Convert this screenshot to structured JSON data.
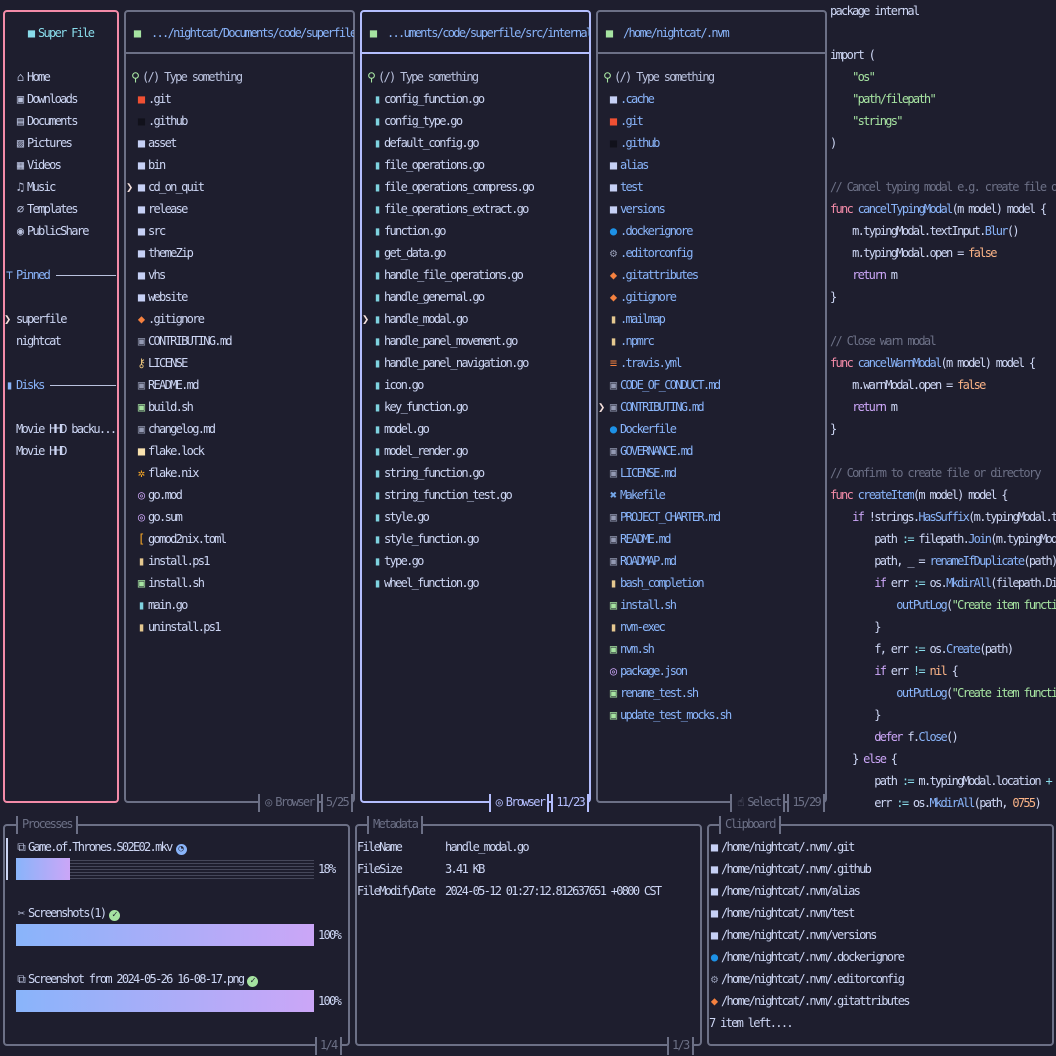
{
  "colors": {
    "background": "#1e1e2e",
    "sidebar_border": "#f38ba8",
    "active_border": "#b4befe",
    "border": "#6c7086",
    "accent": "#89b4fa"
  },
  "sidebar": {
    "title": "Super File",
    "title_icon": "folder-icon",
    "items": [
      {
        "label": "Home",
        "icon": "home"
      },
      {
        "label": "Downloads",
        "icon": "downloads"
      },
      {
        "label": "Documents",
        "icon": "documents"
      },
      {
        "label": "Pictures",
        "icon": "pictures"
      },
      {
        "label": "Videos",
        "icon": "videos"
      },
      {
        "label": "Music",
        "icon": "music"
      },
      {
        "label": "Templates",
        "icon": "templates"
      },
      {
        "label": "PublicShare",
        "icon": "publicshare"
      }
    ],
    "pinned_label": "Pinned",
    "pinned": [
      {
        "label": "superfile",
        "selected": true
      },
      {
        "label": "nightcat"
      }
    ],
    "disks_label": "Disks",
    "disks": [
      {
        "label": "Movie HHD backu..."
      },
      {
        "label": "Movie HHD"
      }
    ]
  },
  "search_placeholder": "(/) Type something",
  "panels": [
    {
      "path": ".../nightcat/Documents/code/superfile",
      "mode": "Browser",
      "count": "5/25",
      "active": false,
      "text_color": "#cdd6f4",
      "files": [
        [
          "git-folder",
          ".git"
        ],
        [
          "github-folder",
          ".github"
        ],
        [
          "folder",
          "asset"
        ],
        [
          "folder",
          "bin"
        ],
        [
          "folder",
          "cd_on_quit",
          1
        ],
        [
          "folder",
          "release"
        ],
        [
          "folder",
          "src"
        ],
        [
          "folder",
          "themeZip"
        ],
        [
          "folder",
          "vhs"
        ],
        [
          "folder",
          "website"
        ],
        [
          "gitignore",
          ".gitignore"
        ],
        [
          "markdown",
          "CONTRIBUTING.md"
        ],
        [
          "license",
          "LICENSE"
        ],
        [
          "markdown",
          "README.md"
        ],
        [
          "shell",
          "build.sh"
        ],
        [
          "markdown",
          "changelog.md"
        ],
        [
          "lock",
          "flake.lock"
        ],
        [
          "nix",
          "flake.nix"
        ],
        [
          "gomod",
          "go.mod"
        ],
        [
          "gomod",
          "go.sum"
        ],
        [
          "toml",
          "gomod2nix.toml"
        ],
        [
          "file",
          "install.ps1"
        ],
        [
          "shell",
          "install.sh"
        ],
        [
          "go",
          "main.go"
        ],
        [
          "file",
          "uninstall.ps1"
        ]
      ]
    },
    {
      "path": "...uments/code/superfile/src/internal",
      "mode": "Browser",
      "count": "11/23",
      "active": true,
      "text_color": "#cdd6f4",
      "files": [
        [
          "go",
          "config_function.go"
        ],
        [
          "go",
          "config_type.go"
        ],
        [
          "go",
          "default_config.go"
        ],
        [
          "go",
          "file_operations.go"
        ],
        [
          "go",
          "file_operations_compress.go"
        ],
        [
          "go",
          "file_operations_extract.go"
        ],
        [
          "go",
          "function.go"
        ],
        [
          "go",
          "get_data.go"
        ],
        [
          "go",
          "handle_file_operations.go"
        ],
        [
          "go",
          "handle_genernal.go"
        ],
        [
          "go",
          "handle_modal.go",
          1
        ],
        [
          "go",
          "handle_panel_movement.go"
        ],
        [
          "go",
          "handle_panel_navigation.go"
        ],
        [
          "go",
          "icon.go"
        ],
        [
          "go",
          "key_function.go"
        ],
        [
          "go",
          "model.go"
        ],
        [
          "go",
          "model_render.go"
        ],
        [
          "go",
          "string_function.go"
        ],
        [
          "go",
          "string_function_test.go"
        ],
        [
          "go",
          "style.go"
        ],
        [
          "go",
          "style_function.go"
        ],
        [
          "go",
          "type.go"
        ],
        [
          "go",
          "wheel_function.go"
        ]
      ]
    },
    {
      "path": "/home/nightcat/.nvm",
      "mode": "Select",
      "count": "15/29",
      "active": false,
      "text_color": "#89b4fa",
      "files": [
        [
          "folder",
          ".cache"
        ],
        [
          "git-folder",
          ".git"
        ],
        [
          "github-folder",
          ".github"
        ],
        [
          "folder",
          "alias"
        ],
        [
          "folder",
          "test"
        ],
        [
          "folder",
          "versions"
        ],
        [
          "docker",
          ".dockerignore"
        ],
        [
          "editorconfig",
          ".editorconfig"
        ],
        [
          "gitignore",
          ".gitattributes"
        ],
        [
          "gitignore",
          ".gitignore"
        ],
        [
          "file",
          ".mailmap"
        ],
        [
          "file",
          ".npmrc"
        ],
        [
          "travis",
          ".travis.yml"
        ],
        [
          "markdown",
          "CODE_OF_CONDUCT.md"
        ],
        [
          "markdown",
          "CONTRIBUTING.md",
          1
        ],
        [
          "docker",
          "Dockerfile"
        ],
        [
          "markdown",
          "GOVERNANCE.md"
        ],
        [
          "markdown",
          "LICENSE.md"
        ],
        [
          "makefile",
          "Makefile"
        ],
        [
          "markdown",
          "PROJECT_CHARTER.md"
        ],
        [
          "markdown",
          "README.md"
        ],
        [
          "markdown",
          "ROADMAP.md"
        ],
        [
          "file",
          "bash_completion"
        ],
        [
          "shell",
          "install.sh"
        ],
        [
          "file",
          "nvm-exec"
        ],
        [
          "shell",
          "nvm.sh"
        ],
        [
          "gomod",
          "package.json"
        ],
        [
          "shell",
          "rename_test.sh"
        ],
        [
          "shell",
          "update_test_mocks.sh"
        ]
      ]
    }
  ],
  "preview": [
    [
      [
        "package internal",
        "t"
      ]
    ],
    [],
    [
      [
        "import (",
        "t"
      ]
    ],
    [
      [
        "    ",
        "t"
      ],
      [
        "\"os\"",
        "s"
      ]
    ],
    [
      [
        "    ",
        "t"
      ],
      [
        "\"path/filepath\"",
        "s"
      ]
    ],
    [
      [
        "    ",
        "t"
      ],
      [
        "\"strings\"",
        "s"
      ]
    ],
    [
      [
        ")",
        "t"
      ]
    ],
    [],
    [
      [
        "// Cancel typing modal e.g. create file o",
        "c"
      ]
    ],
    [
      [
        "func",
        "k"
      ],
      [
        " ",
        "t"
      ],
      [
        "cancelTypingModal",
        "f"
      ],
      [
        "(m model) model {",
        "t"
      ]
    ],
    [
      [
        "    m.typingModal.textInput.",
        "t"
      ],
      [
        "Blur",
        "f"
      ],
      [
        "()",
        "t"
      ]
    ],
    [
      [
        "    m.typingModal.open = ",
        "t"
      ],
      [
        "false",
        "o"
      ]
    ],
    [
      [
        "    ",
        "t"
      ],
      [
        "return",
        "p"
      ],
      [
        " m",
        "t"
      ]
    ],
    [
      [
        "}",
        "t"
      ]
    ],
    [],
    [
      [
        "// Close warn modal",
        "c"
      ]
    ],
    [
      [
        "func",
        "k"
      ],
      [
        " ",
        "t"
      ],
      [
        "cancelWarnModal",
        "f"
      ],
      [
        "(m model) model {",
        "t"
      ]
    ],
    [
      [
        "    m.warnModal.open = ",
        "t"
      ],
      [
        "false",
        "o"
      ]
    ],
    [
      [
        "    ",
        "t"
      ],
      [
        "return",
        "p"
      ],
      [
        " m",
        "t"
      ]
    ],
    [
      [
        "}",
        "t"
      ]
    ],
    [],
    [
      [
        "// Confirm to create file or directory",
        "c"
      ]
    ],
    [
      [
        "func",
        "k"
      ],
      [
        " ",
        "t"
      ],
      [
        "createItem",
        "f"
      ],
      [
        "(m model) model {",
        "t"
      ]
    ],
    [
      [
        "    ",
        "t"
      ],
      [
        "if",
        "p"
      ],
      [
        " !strings.",
        "t"
      ],
      [
        "HasSuffix",
        "f"
      ],
      [
        "(m.typingModal.t",
        "t"
      ]
    ],
    [
      [
        "        path ",
        "t"
      ],
      [
        ":=",
        "x"
      ],
      [
        " filepath.",
        "t"
      ],
      [
        "Join",
        "f"
      ],
      [
        "(m.typingMod",
        "t"
      ]
    ],
    [
      [
        "        path, _ = ",
        "t"
      ],
      [
        "renameIfDuplicate",
        "f"
      ],
      [
        "(path)",
        "t"
      ]
    ],
    [
      [
        "        ",
        "t"
      ],
      [
        "if",
        "p"
      ],
      [
        " err ",
        "t"
      ],
      [
        ":=",
        "x"
      ],
      [
        " os.",
        "t"
      ],
      [
        "MkdirAll",
        "f"
      ],
      [
        "(filepath.Di",
        "t"
      ]
    ],
    [
      [
        "            ",
        "t"
      ],
      [
        "outPutLog",
        "f"
      ],
      [
        "(",
        "t"
      ],
      [
        "\"Create item functi",
        "s"
      ]
    ],
    [
      [
        "        }",
        "t"
      ]
    ],
    [
      [
        "        f, err ",
        "t"
      ],
      [
        ":=",
        "x"
      ],
      [
        " os.",
        "t"
      ],
      [
        "Create",
        "f"
      ],
      [
        "(path)",
        "t"
      ]
    ],
    [
      [
        "        ",
        "t"
      ],
      [
        "if",
        "p"
      ],
      [
        " err ",
        "t"
      ],
      [
        "!=",
        "x"
      ],
      [
        " ",
        "t"
      ],
      [
        "nil",
        "o"
      ],
      [
        " {",
        "t"
      ]
    ],
    [
      [
        "            ",
        "t"
      ],
      [
        "outPutLog",
        "f"
      ],
      [
        "(",
        "t"
      ],
      [
        "\"Create item functi",
        "s"
      ]
    ],
    [
      [
        "        }",
        "t"
      ]
    ],
    [
      [
        "        ",
        "t"
      ],
      [
        "defer",
        "p"
      ],
      [
        " f.",
        "t"
      ],
      [
        "Close",
        "f"
      ],
      [
        "()",
        "t"
      ]
    ],
    [
      [
        "    } ",
        "t"
      ],
      [
        "else",
        "p"
      ],
      [
        " {",
        "t"
      ]
    ],
    [
      [
        "        path ",
        "t"
      ],
      [
        ":=",
        "x"
      ],
      [
        " m.typingModal.location ",
        "t"
      ],
      [
        "+",
        "x"
      ]
    ],
    [
      [
        "        err ",
        "t"
      ],
      [
        ":=",
        "x"
      ],
      [
        " os.",
        "t"
      ],
      [
        "MkdirAll",
        "f"
      ],
      [
        "(path, ",
        "t"
      ],
      [
        "0755",
        "o"
      ],
      [
        ")",
        "t"
      ]
    ]
  ],
  "processes": {
    "title": "Processes",
    "count": "1/4",
    "items": [
      {
        "icon": "copy",
        "name": "Game.of.Thrones.S02E02.mkv",
        "status": "in-progress",
        "progress_percent": 18,
        "label": "18%"
      },
      {
        "icon": "cut",
        "name": "Screenshots(1)",
        "status": "done",
        "progress_percent": 100,
        "label": "100%"
      },
      {
        "icon": "copy",
        "name": "Screenshot from 2024-05-26 16-08-17.png",
        "status": "done",
        "progress_percent": 100,
        "label": "100%"
      }
    ]
  },
  "metadata": {
    "title": "Metadata",
    "count": "1/3",
    "rows": [
      [
        "FileName",
        "handle_modal.go"
      ],
      [
        "FileSize",
        "3.41 KB"
      ],
      [
        "FileModifyDate",
        "2024-05-12 01:27:12.812637651 +0800 CST"
      ]
    ]
  },
  "clipboard": {
    "title": "Clipboard",
    "items": [
      [
        "folder",
        "/home/nightcat/.nvm/.git"
      ],
      [
        "folder",
        "/home/nightcat/.nvm/.github"
      ],
      [
        "folder",
        "/home/nightcat/.nvm/alias"
      ],
      [
        "folder",
        "/home/nightcat/.nvm/test"
      ],
      [
        "folder",
        "/home/nightcat/.nvm/versions"
      ],
      [
        "docker",
        "/home/nightcat/.nvm/.dockerignore"
      ],
      [
        "editorconfig",
        "/home/nightcat/.nvm/.editorconfig"
      ],
      [
        "gitignore",
        "/home/nightcat/.nvm/.gitattributes"
      ]
    ],
    "more": "7 item left...."
  }
}
